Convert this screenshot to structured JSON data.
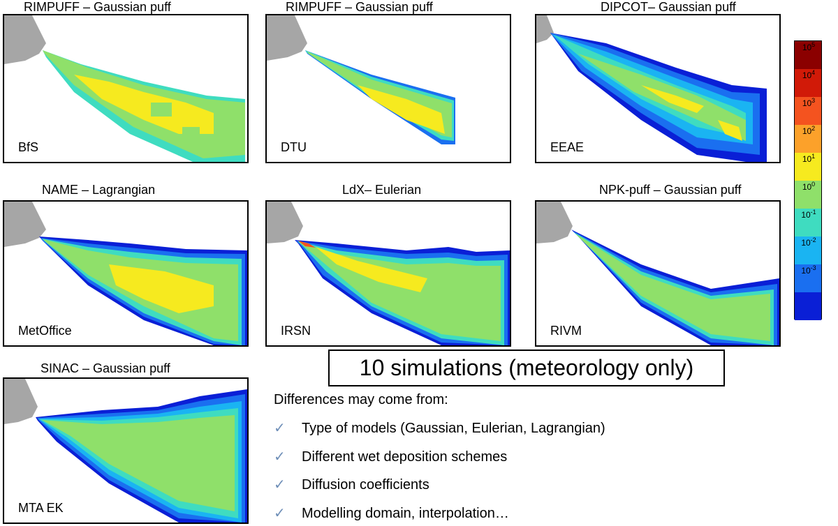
{
  "panels": [
    {
      "title": "RIMPUFF – Gaussian puff",
      "org": "BfS"
    },
    {
      "title": "RIMPUFF – Gaussian puff",
      "org": "DTU"
    },
    {
      "title": "DIPCOT– Gaussian puff",
      "org": "EEAE"
    },
    {
      "title": "NAME – Lagrangian",
      "org": "MetOffice"
    },
    {
      "title": "LdX– Eulerian",
      "org": "IRSN"
    },
    {
      "title": "NPK-puff – Gaussian puff",
      "org": "RIVM"
    },
    {
      "title": "SINAC – Gaussian puff",
      "org": "MTA EK"
    }
  ],
  "colorbar": {
    "labels": [
      {
        "base": "10",
        "exp": "5"
      },
      {
        "base": "10",
        "exp": "4"
      },
      {
        "base": "10",
        "exp": "3"
      },
      {
        "base": "10",
        "exp": "2"
      },
      {
        "base": "10",
        "exp": "1"
      },
      {
        "base": "10",
        "exp": "0"
      },
      {
        "base": "10",
        "exp": "-1"
      },
      {
        "base": "10",
        "exp": "-2"
      },
      {
        "base": "10",
        "exp": "-3"
      }
    ],
    "colors": [
      "#8b0000",
      "#d11a08",
      "#f4531f",
      "#fca12a",
      "#f6ea1f",
      "#8fe06a",
      "#3fdcc0",
      "#1ab4f2",
      "#1a6ff0",
      "#0a1fd6"
    ]
  },
  "headline": "10 simulations (meteorology only)",
  "subhead": "Differences may come from:",
  "bullets": [
    {
      "check": "✓",
      "text": "Type of models (Gaussian, Eulerian, Lagrangian)"
    },
    {
      "check": "✓",
      "text": "Different wet deposition schemes"
    },
    {
      "check": "✓",
      "text": "Diffusion coefficients"
    },
    {
      "check": "✓",
      "text": "Modelling domain, interpolation…"
    }
  ]
}
